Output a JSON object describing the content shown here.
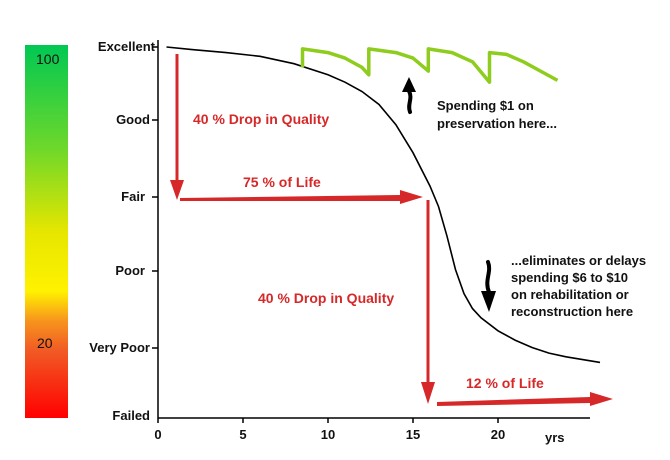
{
  "chart_data": {
    "type": "line",
    "ylabels": [
      "Excellent",
      "Good",
      "Fair",
      "Poor",
      "Very Poor",
      "Failed"
    ],
    "xticks": [
      0,
      5,
      10,
      15,
      20
    ],
    "xlabel": "yrs",
    "xlim": [
      0,
      25
    ],
    "ylim": [
      0,
      100
    ],
    "color_scale": {
      "top": "100",
      "bottom": "20"
    },
    "series": [
      {
        "color": "#000000",
        "points": [
          [
            0.5,
            100
          ],
          [
            2,
            99.3
          ],
          [
            4,
            98.5
          ],
          [
            6,
            97.5
          ],
          [
            8,
            95.5
          ],
          [
            10,
            92.5
          ],
          [
            11,
            90.5
          ],
          [
            12,
            88
          ],
          [
            13,
            84.5
          ],
          [
            14,
            79
          ],
          [
            15,
            71.5
          ],
          [
            16,
            62.5
          ],
          [
            16.5,
            57
          ],
          [
            17,
            49
          ],
          [
            17.5,
            40
          ],
          [
            18,
            33.5
          ],
          [
            18.5,
            29.5
          ],
          [
            19,
            27
          ],
          [
            20,
            23.5
          ],
          [
            21,
            21
          ],
          [
            22,
            19
          ],
          [
            23,
            17.5
          ],
          [
            24,
            16.5
          ],
          [
            26,
            15
          ]
        ]
      },
      {
        "color": "#8ecc1e",
        "points": [
          [
            8.5,
            94.5
          ],
          [
            8.5,
            99.5
          ],
          [
            10,
            98.5
          ],
          [
            11,
            97
          ],
          [
            12,
            94.5
          ],
          [
            12.4,
            92.5
          ],
          [
            12.4,
            99.5
          ],
          [
            14,
            98.5
          ],
          [
            15,
            97
          ],
          [
            15.9,
            93.5
          ],
          [
            15.9,
            99.5
          ],
          [
            17.3,
            98.5
          ],
          [
            18.5,
            96
          ],
          [
            19.5,
            90.5
          ],
          [
            19.5,
            98.5
          ],
          [
            20.5,
            98
          ],
          [
            21.5,
            96
          ],
          [
            22.5,
            93.5
          ],
          [
            23.5,
            91
          ]
        ]
      }
    ],
    "annotations": {
      "drop1": "40 % Drop in Quality",
      "life1": "75 % of Life",
      "drop2": "40 % Drop in Quality",
      "life2": "12 % of Life",
      "note1_line1": "Spending $1 on",
      "note1_line2": "preservation here...",
      "note2_line1": "...eliminates or delays",
      "note2_line2": "spending $6 to $10",
      "note2_line3": "on rehabilitation or",
      "note2_line4": "reconstruction here"
    },
    "colors": {
      "curve": "#000000",
      "preservation": "#8ecc1e",
      "arrow": "#d62828"
    },
    "grid": false
  }
}
